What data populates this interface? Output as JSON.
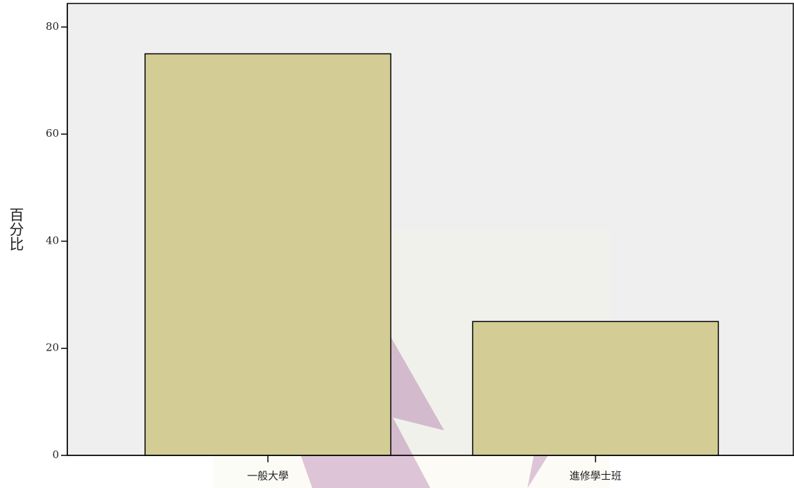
{
  "chart_data": {
    "type": "bar",
    "y_label": "百分比",
    "categories": [
      "一般大學",
      "進修學士班"
    ],
    "values": [
      75,
      25
    ],
    "color": "#d3cd95",
    "ylim": [
      0,
      84.4
    ],
    "yticks": [
      0,
      20,
      40,
      60,
      80
    ]
  }
}
